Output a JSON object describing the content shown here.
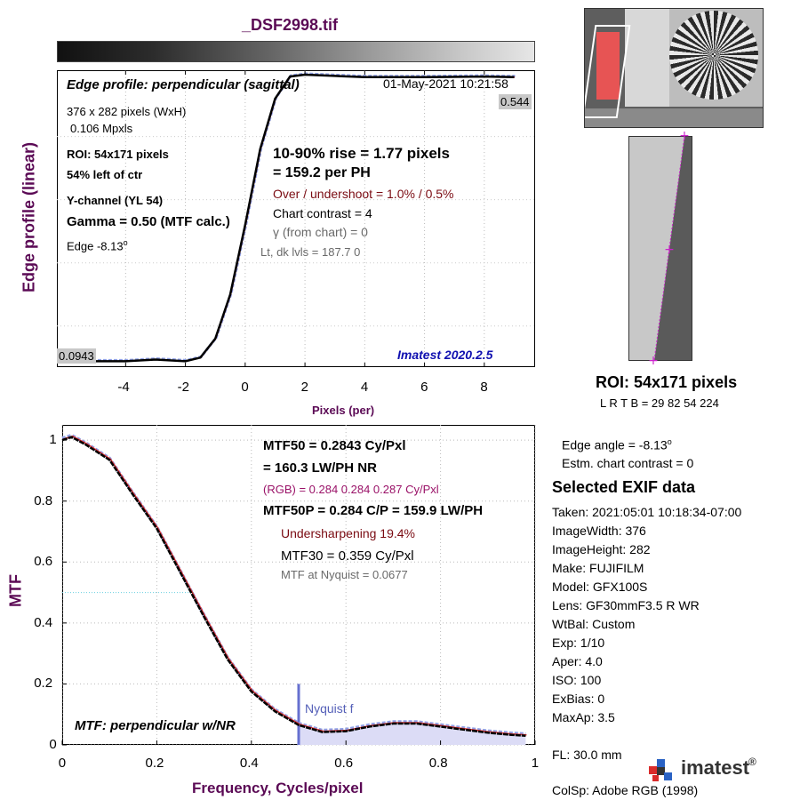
{
  "file_title": "_DSF2998.tif",
  "edge_plot": {
    "heading": "Edge profile: perpendicular (sagittal)",
    "timestamp": "01-May-2021 10:21:58",
    "ylabel": "Edge profile (linear)",
    "xlabel": "Pixels (per)",
    "xticks": [
      "-4",
      "-2",
      "0",
      "2",
      "4",
      "6",
      "8"
    ],
    "top_level": "0.544",
    "bottom_level": "0.0943",
    "info": {
      "size": "376 x 282 pixels (WxH)",
      "mpxls": "0.106 Mpxls",
      "roi": "ROI:  54x171 pixels",
      "location": "54% left of ctr",
      "channel": "Y-channel  (YL 54)",
      "gamma": "Gamma = 0.50 (MTF calc.)",
      "edge": "Edge  -8.13",
      "edge_sup": "o"
    },
    "rise": "10-90% rise = 1.77 pixels",
    "per_ph": "=  159.2 per PH",
    "overshoot": "Over / undershoot =  1.0% /  0.5%",
    "chart_contrast": "Chart contrast = 4",
    "gamma_chart": "γ (from chart) =     0",
    "lt_dk": "Lt, dk lvls = 187.7  0",
    "version": "Imatest 2020.2.5"
  },
  "mtf_plot": {
    "ylabel": "MTF",
    "xlabel": "Frequency, Cycles/pixel",
    "xticks": [
      "0",
      "0.2",
      "0.4",
      "0.6",
      "0.8",
      "1"
    ],
    "yticks": [
      "0",
      "0.2",
      "0.4",
      "0.6",
      "0.8",
      "1"
    ],
    "mtf50": "MTF50 = 0.2843 Cy/Pxl",
    "mtf50_lw": "= 160.3 LW/PH  NR",
    "rgb": "(RGB) = 0.284  0.284  0.287 Cy/Pxl",
    "mtf50p": "MTF50P = 0.284 C/P = 159.9 LW/PH",
    "undersharp": "Undersharpening 19.4%",
    "mtf30": "MTF30 = 0.359 Cy/Pxl",
    "nyquist_mtf": "MTF at Nyquist = 0.0677",
    "nyquist_label": "Nyquist f",
    "title": "MTF: perpendicular w/NR"
  },
  "roi_panel": {
    "roi": "ROI:  54x171 pixels",
    "coords": "L R  T B = 29 82  54 224"
  },
  "exif": {
    "edge_angle": "Edge angle = -8.13",
    "edge_angle_sup": "o",
    "contrast": "Estm. chart contrast = 0",
    "heading": "Selected EXIF data",
    "rows": [
      "Taken: 2021:05:01 10:18:34-07:00",
      "ImageWidth:  376",
      "ImageHeight:  282",
      "Make:  FUJIFILM",
      "Model:  GFX100S",
      "Lens:   GF30mmF3.5 R WR",
      "WtBal:  Custom",
      "Exp:    1/10",
      "Aper:   4.0",
      "ISO:    100",
      "ExBias:  0",
      "MaxAp:  3.5"
    ],
    "fl": "FL:      30.0 mm",
    "colsp": "ColSp:  Adobe RGB (1998)"
  },
  "logo": {
    "text": "imatest",
    "mark": "®"
  },
  "colors": {
    "label": "#5b0a55",
    "red": "#e03030",
    "blue": "#7a86d6",
    "black": "#000000"
  },
  "chart_data": [
    {
      "type": "line",
      "title": "Edge profile: perpendicular (sagittal)",
      "xlabel": "Pixels (per)",
      "ylabel": "Edge profile (linear)",
      "xlim": [
        -6.3,
        9.7
      ],
      "ylim": [
        0.085,
        0.555
      ],
      "grid": true,
      "x": [
        -5.5,
        -4,
        -3,
        -2,
        -1.5,
        -1,
        -0.5,
        0,
        0.5,
        1,
        1.5,
        2,
        3,
        4,
        6,
        8,
        9
      ],
      "series": [
        {
          "values": [
            0.0943,
            0.0943,
            0.097,
            0.0943,
            0.1,
            0.13,
            0.2,
            0.31,
            0.43,
            0.51,
            0.545,
            0.548,
            0.546,
            0.544,
            0.544,
            0.545,
            0.544
          ]
        }
      ]
    },
    {
      "type": "line",
      "title": "MTF: perpendicular w/NR",
      "xlabel": "Frequency, Cycles/pixel",
      "ylabel": "MTF",
      "xlim": [
        0,
        1
      ],
      "ylim": [
        0,
        1.05
      ],
      "grid": true,
      "x": [
        0,
        0.02,
        0.05,
        0.1,
        0.15,
        0.2,
        0.25,
        0.3,
        0.35,
        0.4,
        0.45,
        0.5,
        0.55,
        0.6,
        0.65,
        0.7,
        0.75,
        0.8,
        0.85,
        0.9,
        0.95,
        0.98
      ],
      "series": [
        {
          "values": [
            1.0,
            1.01,
            0.985,
            0.935,
            0.82,
            0.71,
            0.565,
            0.42,
            0.28,
            0.175,
            0.11,
            0.065,
            0.042,
            0.045,
            0.06,
            0.07,
            0.07,
            0.06,
            0.05,
            0.04,
            0.033,
            0.03
          ]
        }
      ],
      "annotations": {
        "nyquist_x": 0.5,
        "mtf50_y": 0.5
      }
    }
  ]
}
